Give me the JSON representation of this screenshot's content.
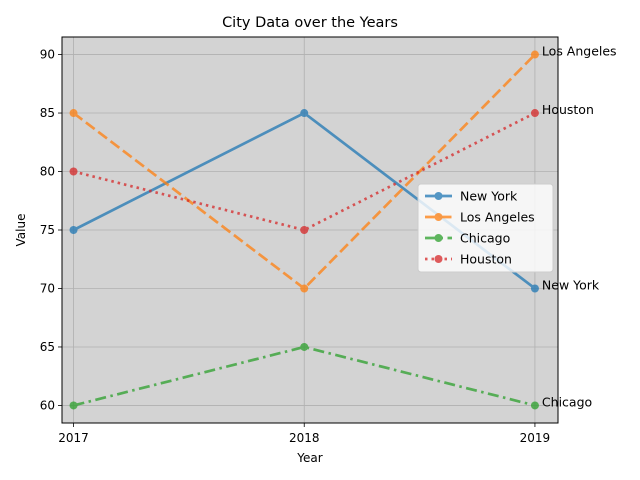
{
  "chart_data": {
    "type": "line",
    "title": "City Data over the Years",
    "xlabel": "Year",
    "ylabel": "Value",
    "x": [
      2017,
      2018,
      2019
    ],
    "xlim": [
      2016.95,
      2019.1
    ],
    "ylim": [
      58.5,
      91.5
    ],
    "yticks": [
      60,
      65,
      70,
      75,
      80,
      85,
      90
    ],
    "grid": true,
    "background": "#d3d3d3",
    "legend_position": "center-right",
    "series": [
      {
        "name": "New York",
        "values": [
          75,
          85,
          70
        ],
        "color": "#1f77b4",
        "linestyle": "solid"
      },
      {
        "name": "Los Angeles",
        "values": [
          85,
          70,
          90
        ],
        "color": "#ff7f0e",
        "linestyle": "dashed"
      },
      {
        "name": "Chicago",
        "values": [
          60,
          65,
          60
        ],
        "color": "#2ca02c",
        "linestyle": "dashdot"
      },
      {
        "name": "Houston",
        "values": [
          80,
          75,
          85
        ],
        "color": "#d62728",
        "linestyle": "dotted"
      }
    ]
  }
}
